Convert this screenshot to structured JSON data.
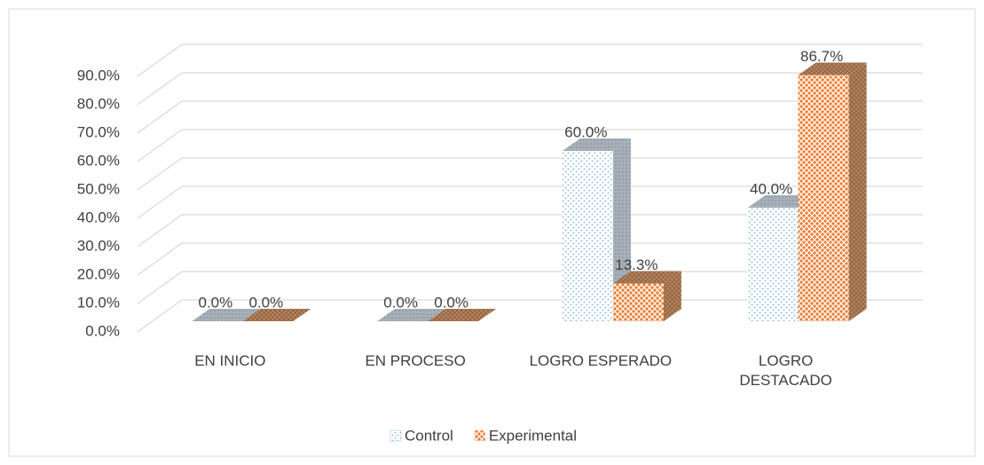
{
  "chart_data": {
    "type": "bar3d",
    "categories": [
      "EN INICIO",
      "EN PROCESO",
      "LOGRO ESPERADO",
      "LOGRO DESTACADO"
    ],
    "series": [
      {
        "name": "Control",
        "color": "#9dc3e6",
        "values": [
          0,
          0,
          60,
          40
        ],
        "value_labels": [
          "0.0%",
          "0.0%",
          "60.0%",
          "40.0%"
        ]
      },
      {
        "name": "Experimental",
        "color": "#ed7d31",
        "values": [
          0,
          0,
          13.3,
          86.7
        ],
        "value_labels": [
          "0.0%",
          "0.0%",
          "13.3%",
          "86.7%"
        ]
      }
    ],
    "ylim": [
      0,
      90
    ],
    "yticks": [
      {
        "value": 0,
        "label": "0.0%"
      },
      {
        "value": 10,
        "label": "10.0%"
      },
      {
        "value": 20,
        "label": "20.0%"
      },
      {
        "value": 30,
        "label": "30.0%"
      },
      {
        "value": 40,
        "label": "40.0%"
      },
      {
        "value": 50,
        "label": "50.0%"
      },
      {
        "value": 60,
        "label": "60.0%"
      },
      {
        "value": 70,
        "label": "70.0%"
      },
      {
        "value": 80,
        "label": "80.0%"
      },
      {
        "value": 90,
        "label": "90.0%"
      }
    ],
    "grid": true,
    "legend": "bottom"
  }
}
